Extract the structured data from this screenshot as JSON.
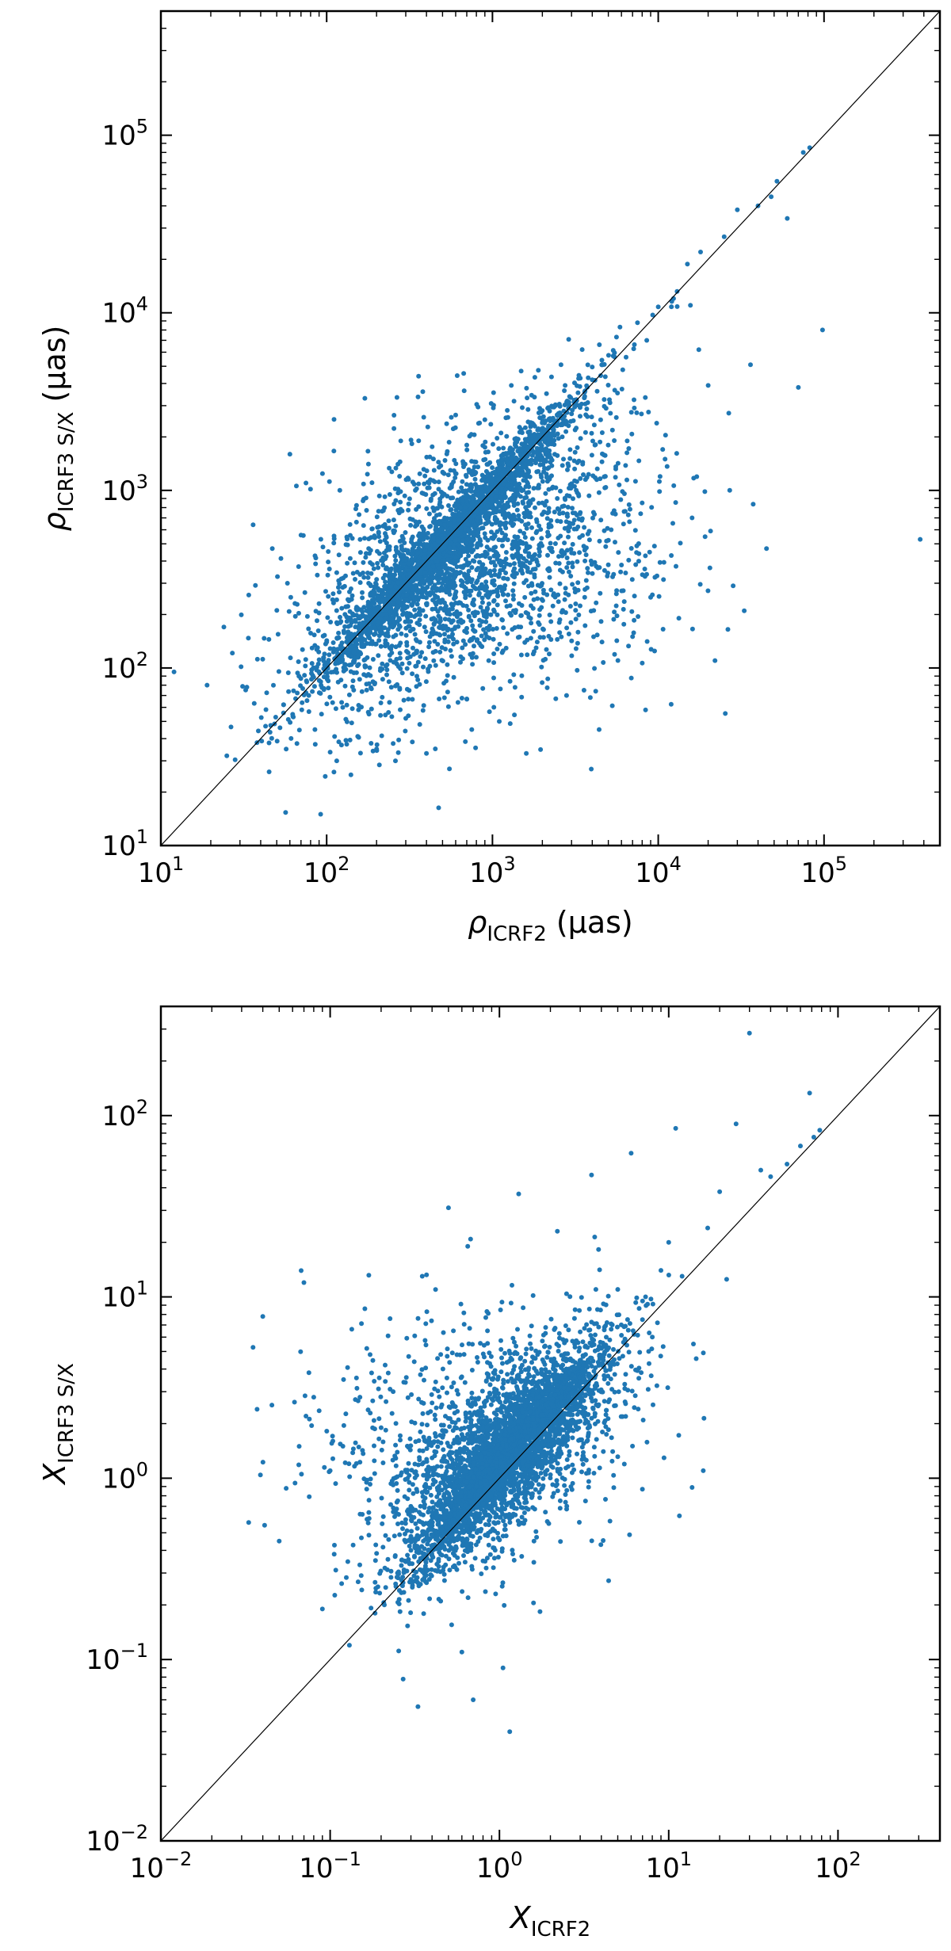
{
  "chart_data": [
    {
      "type": "scatter",
      "scale": "log-log",
      "xlabel": {
        "symbol": "ρ",
        "subscript": "ICRF2",
        "unit": " (μas)"
      },
      "ylabel": {
        "symbol": "ρ",
        "subscript": "ICRF3 S/X",
        "unit": " (μas)"
      },
      "xlim": [
        10,
        500000
      ],
      "ylim": [
        10,
        500000
      ],
      "xticks": [
        {
          "base": "10",
          "exp": "1"
        },
        {
          "base": "10",
          "exp": "2"
        },
        {
          "base": "10",
          "exp": "3"
        },
        {
          "base": "10",
          "exp": "4"
        },
        {
          "base": "10",
          "exp": "5"
        }
      ],
      "yticks": [
        {
          "base": "10",
          "exp": "1"
        },
        {
          "base": "10",
          "exp": "2"
        },
        {
          "base": "10",
          "exp": "3"
        },
        {
          "base": "10",
          "exp": "4"
        },
        {
          "base": "10",
          "exp": "5"
        }
      ],
      "reference_line": "y = x",
      "marker_color": "#1f77b4",
      "approx_point_count": 4500,
      "points": [
        [
          12,
          95
        ],
        [
          19,
          80
        ],
        [
          24,
          170
        ],
        [
          25,
          32
        ],
        [
          33,
          78
        ],
        [
          36,
          640
        ],
        [
          38,
          38
        ],
        [
          45,
          26
        ],
        [
          47,
          470
        ],
        [
          55,
          62
        ],
        [
          58,
          300
        ],
        [
          60,
          1600
        ],
        [
          68,
          90
        ],
        [
          70,
          560
        ],
        [
          75,
          1100
        ],
        [
          78,
          70
        ],
        [
          85,
          45
        ],
        [
          90,
          230
        ],
        [
          92,
          15
        ],
        [
          95,
          480
        ],
        [
          100,
          140
        ],
        [
          110,
          95
        ],
        [
          115,
          30
        ],
        [
          120,
          1000
        ],
        [
          125,
          60
        ],
        [
          130,
          330
        ],
        [
          140,
          25
        ],
        [
          160,
          120
        ],
        [
          170,
          3300
        ],
        [
          180,
          55
        ],
        [
          190,
          240
        ],
        [
          200,
          35
        ],
        [
          220,
          770
        ],
        [
          240,
          130
        ],
        [
          260,
          30
        ],
        [
          280,
          1900
        ],
        [
          300,
          52
        ],
        [
          320,
          200
        ],
        [
          350,
          90
        ],
        [
          380,
          3600
        ],
        [
          400,
          33
        ],
        [
          420,
          150
        ],
        [
          450,
          960
        ],
        [
          480,
          600
        ],
        [
          500,
          300
        ],
        [
          550,
          27
        ],
        [
          600,
          420
        ],
        [
          650,
          180
        ],
        [
          700,
          1800
        ],
        [
          750,
          45
        ],
        [
          800,
          760
        ],
        [
          850,
          220
        ],
        [
          900,
          2500
        ],
        [
          950,
          110
        ],
        [
          1000,
          1150
        ],
        [
          1100,
          50
        ],
        [
          1200,
          560
        ],
        [
          1300,
          3900
        ],
        [
          1400,
          340
        ],
        [
          1500,
          1600
        ],
        [
          1600,
          33
        ],
        [
          1700,
          190
        ],
        [
          1800,
          2300
        ],
        [
          2000,
          850
        ],
        [
          2200,
          120
        ],
        [
          2400,
          3000
        ],
        [
          2600,
          450
        ],
        [
          2800,
          70
        ],
        [
          3000,
          2700
        ],
        [
          3300,
          950
        ],
        [
          3600,
          250
        ],
        [
          4000,
          4200
        ],
        [
          4400,
          45
        ],
        [
          4800,
          1200
        ],
        [
          5200,
          600
        ],
        [
          5600,
          7300
        ],
        [
          6000,
          380
        ],
        [
          6500,
          1900
        ],
        [
          7000,
          150
        ],
        [
          7500,
          8800
        ],
        [
          8000,
          850
        ],
        [
          9000,
          250
        ],
        [
          10000,
          10800
        ],
        [
          11000,
          1500
        ],
        [
          12000,
          430
        ],
        [
          13000,
          13200
        ],
        [
          15000,
          18800
        ],
        [
          16000,
          700
        ],
        [
          18000,
          22000
        ],
        [
          20000,
          3900
        ],
        [
          22000,
          110
        ],
        [
          25000,
          26800
        ],
        [
          27000,
          1000
        ],
        [
          30000,
          38000
        ],
        [
          33000,
          210
        ],
        [
          36000,
          5100
        ],
        [
          40000,
          40000
        ],
        [
          45000,
          470
        ],
        [
          48000,
          45000
        ],
        [
          52000,
          55000
        ],
        [
          60000,
          34000
        ],
        [
          70000,
          3800
        ],
        [
          75000,
          80000
        ],
        [
          82000,
          85000
        ],
        [
          98000,
          8000
        ],
        [
          380000,
          530
        ]
      ]
    },
    {
      "type": "scatter",
      "scale": "log-log",
      "xlabel": {
        "symbol": "X",
        "subscript": "ICRF2",
        "unit": ""
      },
      "ylabel": {
        "symbol": "X",
        "subscript": "ICRF3 S/X",
        "unit": ""
      },
      "xlim": [
        0.01,
        400
      ],
      "ylim": [
        0.01,
        400
      ],
      "xticks": [
        {
          "base": "10",
          "exp": "−2"
        },
        {
          "base": "10",
          "exp": "−1"
        },
        {
          "base": "10",
          "exp": "0"
        },
        {
          "base": "10",
          "exp": "1"
        },
        {
          "base": "10",
          "exp": "2"
        }
      ],
      "yticks": [
        {
          "base": "10",
          "exp": "−2"
        },
        {
          "base": "10",
          "exp": "−1"
        },
        {
          "base": "10",
          "exp": "0"
        },
        {
          "base": "10",
          "exp": "1"
        },
        {
          "base": "10",
          "exp": "2"
        }
      ],
      "reference_line": "y = x",
      "marker_color": "#1f77b4",
      "approx_point_count": 4500,
      "points": [
        [
          0.033,
          0.57
        ],
        [
          0.037,
          2.4
        ],
        [
          0.04,
          7.8
        ],
        [
          0.041,
          0.55
        ],
        [
          0.05,
          0.45
        ],
        [
          0.055,
          0.88
        ],
        [
          0.062,
          0.94
        ],
        [
          0.07,
          12
        ],
        [
          0.072,
          2.2
        ],
        [
          0.08,
          2.8
        ],
        [
          0.09,
          0.19
        ],
        [
          0.1,
          1.1
        ],
        [
          0.12,
          3.5
        ],
        [
          0.13,
          0.12
        ],
        [
          0.15,
          2.8
        ],
        [
          0.17,
          0.6
        ],
        [
          0.2,
          1.9
        ],
        [
          0.22,
          6.1
        ],
        [
          0.25,
          0.3
        ],
        [
          0.27,
          0.078
        ],
        [
          0.3,
          0.4
        ],
        [
          0.33,
          0.055
        ],
        [
          0.35,
          13
        ],
        [
          0.38,
          0.65
        ],
        [
          0.4,
          2.6
        ],
        [
          0.45,
          0.21
        ],
        [
          0.5,
          31
        ],
        [
          0.55,
          1.2
        ],
        [
          0.6,
          0.11
        ],
        [
          0.65,
          19
        ],
        [
          0.7,
          0.06
        ],
        [
          0.75,
          1.6
        ],
        [
          0.8,
          0.35
        ],
        [
          0.85,
          6.5
        ],
        [
          0.9,
          0.9
        ],
        [
          0.95,
          0.23
        ],
        [
          1.0,
          2.1
        ],
        [
          1.05,
          0.09
        ],
        [
          1.1,
          1.5
        ],
        [
          1.15,
          0.04
        ],
        [
          1.2,
          0.72
        ],
        [
          1.3,
          37
        ],
        [
          1.4,
          3.2
        ],
        [
          1.5,
          1.1
        ],
        [
          1.6,
          0.45
        ],
        [
          1.8,
          4.5
        ],
        [
          2.0,
          1.9
        ],
        [
          2.2,
          23
        ],
        [
          2.5,
          0.7
        ],
        [
          2.8,
          8.5
        ],
        [
          3.0,
          2.6
        ],
        [
          3.5,
          47
        ],
        [
          4.0,
          5.2
        ],
        [
          4.5,
          0.58
        ],
        [
          5.0,
          11
        ],
        [
          5.5,
          3.3
        ],
        [
          6.0,
          62
        ],
        [
          7.0,
          7.5
        ],
        [
          8.0,
          6
        ],
        [
          9.0,
          14
        ],
        [
          10,
          20
        ],
        [
          11,
          85
        ],
        [
          12,
          13
        ],
        [
          14,
          5.5
        ],
        [
          16,
          1.1
        ],
        [
          17,
          24
        ],
        [
          20,
          38
        ],
        [
          22,
          12.5
        ],
        [
          25,
          90
        ],
        [
          30,
          285
        ],
        [
          35,
          50
        ],
        [
          40,
          46
        ],
        [
          50,
          54
        ],
        [
          60,
          68
        ],
        [
          68,
          133
        ],
        [
          72,
          76
        ],
        [
          78,
          83
        ]
      ]
    }
  ]
}
